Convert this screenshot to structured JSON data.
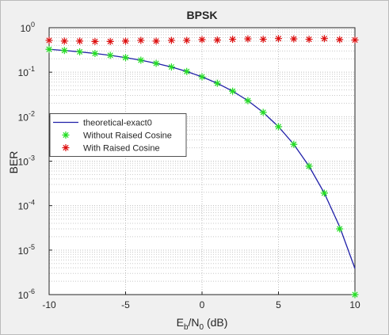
{
  "chart_data": {
    "type": "line",
    "title": "BPSK",
    "ylabel": "BER",
    "xlabel": [
      "E",
      "b",
      "/N",
      "0",
      " (dB)"
    ],
    "x": [
      -10,
      -9,
      -8,
      -7,
      -6,
      -5,
      -4,
      -3,
      -2,
      -1,
      0,
      1,
      2,
      3,
      4,
      5,
      6,
      7,
      8,
      9,
      10
    ],
    "series": [
      {
        "name": "theoretical-exact0",
        "color": "#1f1fa8",
        "style": "line",
        "values": [
          0.327,
          0.308,
          0.287,
          0.264,
          0.239,
          0.213,
          0.186,
          0.158,
          0.131,
          0.104,
          0.0786,
          0.0563,
          0.0375,
          0.0229,
          0.0125,
          0.00595,
          0.00239,
          0.00077,
          0.000191,
          3.36e-05,
          3.87e-06
        ]
      },
      {
        "name": "Without Raised Cosine",
        "color": "#22dd22",
        "style": "star",
        "values": [
          0.327,
          0.308,
          0.287,
          0.264,
          0.239,
          0.213,
          0.186,
          0.158,
          0.131,
          0.104,
          0.0786,
          0.0563,
          0.0375,
          0.0229,
          0.0125,
          0.00595,
          0.00239,
          0.00077,
          0.000191,
          3e-05,
          1e-06
        ]
      },
      {
        "name": "With Raised Cosine",
        "color": "#dd1111",
        "style": "star",
        "values": [
          0.52,
          0.5,
          0.5,
          0.49,
          0.49,
          0.5,
          0.52,
          0.5,
          0.52,
          0.52,
          0.54,
          0.53,
          0.55,
          0.56,
          0.55,
          0.57,
          0.56,
          0.55,
          0.57,
          0.54,
          0.53
        ]
      }
    ],
    "xlim": [
      -10,
      10
    ],
    "xticks": [
      -10,
      -5,
      0,
      5,
      10
    ],
    "ylim": [
      1e-06,
      1
    ],
    "log_y": true,
    "yticks": [
      {
        "value": 1e-06,
        "label": "10",
        "sup": "-6"
      },
      {
        "value": 1e-05,
        "label": "10",
        "sup": "-5"
      },
      {
        "value": 0.0001,
        "label": "10",
        "sup": "-4"
      },
      {
        "value": 0.001,
        "label": "10",
        "sup": "-3"
      },
      {
        "value": 0.01,
        "label": "10",
        "sup": "-2"
      },
      {
        "value": 0.1,
        "label": "10",
        "sup": "-1"
      },
      {
        "value": 1,
        "label": "10",
        "sup": "0"
      }
    ],
    "grid": true,
    "minor_grid": true,
    "legend": "west"
  }
}
